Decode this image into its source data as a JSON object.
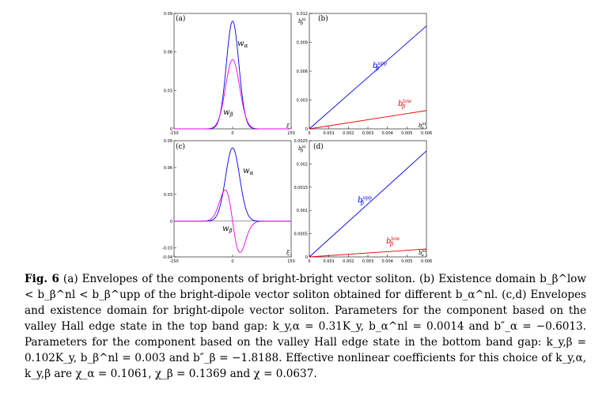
{
  "chart_data": [
    {
      "panel": "(a)",
      "type": "line",
      "xlim": [
        -150,
        150
      ],
      "ylim": [
        0,
        0.09
      ],
      "xticks": [
        "-150",
        "0",
        "150"
      ],
      "yticks": [
        "0",
        "0.03",
        "0.06",
        "0.09"
      ],
      "xlabel": "ξ",
      "series": [
        {
          "name": "w_α",
          "color": "#0000ee",
          "form": "gaussian",
          "peak": 0.084,
          "width": 16
        },
        {
          "name": "w_β",
          "color": "#ee00ee",
          "form": "gaussian",
          "peak": 0.054,
          "width": 18
        }
      ]
    },
    {
      "panel": "(b)",
      "type": "line",
      "xlim": [
        0,
        0.006
      ],
      "ylim": [
        0,
        0.012
      ],
      "xticks": [
        "0",
        "0.001",
        "0.002",
        "0.003",
        "0.004",
        "0.005",
        "0.006"
      ],
      "yticks": [
        "0",
        "0.003",
        "0.006",
        "0.009",
        "0.012"
      ],
      "xlabel": "b_α^nl",
      "ylabel": "b_β^nl",
      "series": [
        {
          "name": "b_β^upp",
          "color": "#0000ee",
          "x": [
            0,
            0.006
          ],
          "y": [
            0,
            0.0107
          ]
        },
        {
          "name": "b_β^low",
          "color": "#ee0000",
          "x": [
            0,
            0.006
          ],
          "y": [
            0,
            0.0019
          ]
        }
      ]
    },
    {
      "panel": "(c)",
      "type": "line",
      "xlim": [
        -150,
        150
      ],
      "ylim": [
        -0.04,
        0.09
      ],
      "xticks": [
        "-150",
        "0",
        "150"
      ],
      "yticks": [
        "-0.04",
        "-0.03",
        "0",
        "0.03",
        "0.06",
        "0.09"
      ],
      "xlabel": "ξ",
      "series": [
        {
          "name": "w_α",
          "color": "#0000ee",
          "form": "gaussian",
          "peak": 0.082,
          "width": 18
        },
        {
          "name": "w_β",
          "color": "#ee00ee",
          "form": "dipole",
          "peak": 0.035,
          "width": 19
        }
      ]
    },
    {
      "panel": "(d)",
      "type": "line",
      "xlim": [
        0,
        0.006
      ],
      "ylim": [
        0,
        0.0025
      ],
      "xticks": [
        "0",
        "0.001",
        "0.002",
        "0.003",
        "0.004",
        "0.005",
        "0.006"
      ],
      "yticks": [
        "0",
        "0.0005",
        "0.001",
        "0.0015",
        "0.002",
        "0.0025"
      ],
      "xlabel": "b_α^nl",
      "ylabel": "b_β^nl",
      "series": [
        {
          "name": "b_β^upp",
          "color": "#0000ee",
          "x": [
            0,
            0.006
          ],
          "y": [
            0,
            0.00228
          ]
        },
        {
          "name": "b_β^low",
          "color": "#ee0000",
          "x": [
            0,
            0.006
          ],
          "y": [
            0,
            0.00017
          ]
        }
      ]
    }
  ],
  "caption": {
    "label": "Fig. 6",
    "text": "(a) Envelopes of the components of bright-bright vector soliton. (b) Existence domain b_β^low < b_β^nl < b_β^upp of the bright-dipole vector soliton obtained for different b_α^nl. (c,d) Envelopes and existence domain for bright-dipole vector soliton. Parameters for the component based on the valley Hall edge state in the top band gap: k_y,α = 0.31K_y, b_α^nl = 0.0014 and b″_α = −0.6013. Parameters for the component based on the valley Hall edge state in the bottom band gap: k_y,β = 0.102K_y, b_β^nl = 0.003 and b″_β = −1.8188. Effective nonlinear coefficients for this choice of k_y,α, k_y,β are χ_α = 0.1061, χ_β = 0.1369 and χ = 0.0637."
  }
}
